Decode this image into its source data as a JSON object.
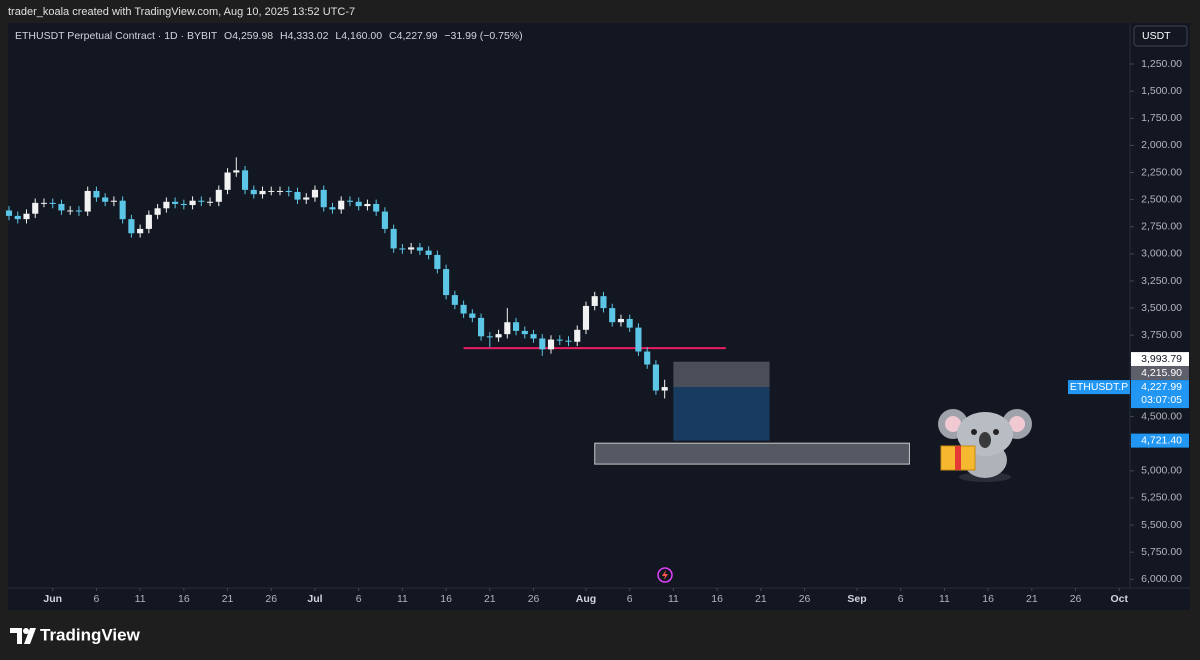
{
  "header": {
    "credit": "trader_koala created with TradingView.com, Aug 10, 2025 13:52 UTC-7"
  },
  "footer": {
    "brand": "TradingView"
  },
  "chart_data": {
    "type": "candlestick",
    "legend": {
      "symbol": "ETHUSDT Perpetual Contract · 1D · BYBIT",
      "open": "O4,259.98",
      "high": "H4,333.02",
      "low": "L4,160.00",
      "close": "C4,227.99",
      "change": "−31.99 (−0.75%)"
    },
    "y_axis_label": "USDT",
    "inverted": true,
    "grid": false,
    "up_color": "#5cc6e6",
    "down_color": "#f2f2f2",
    "x": [
      "2025-05-27",
      "2025-05-28",
      "2025-05-29",
      "2025-05-30",
      "2025-05-31",
      "2025-06-01",
      "2025-06-02",
      "2025-06-03",
      "2025-06-04",
      "2025-06-05",
      "2025-06-06",
      "2025-06-07",
      "2025-06-08",
      "2025-06-09",
      "2025-06-10",
      "2025-06-11",
      "2025-06-12",
      "2025-06-13",
      "2025-06-14",
      "2025-06-15",
      "2025-06-16",
      "2025-06-17",
      "2025-06-18",
      "2025-06-19",
      "2025-06-20",
      "2025-06-21",
      "2025-06-22",
      "2025-06-23",
      "2025-06-24",
      "2025-06-25",
      "2025-06-26",
      "2025-06-27",
      "2025-06-28",
      "2025-06-29",
      "2025-06-30",
      "2025-07-01",
      "2025-07-02",
      "2025-07-03",
      "2025-07-04",
      "2025-07-05",
      "2025-07-06",
      "2025-07-07",
      "2025-07-08",
      "2025-07-09",
      "2025-07-10",
      "2025-07-11",
      "2025-07-12",
      "2025-07-13",
      "2025-07-14",
      "2025-07-15",
      "2025-07-16",
      "2025-07-17",
      "2025-07-18",
      "2025-07-19",
      "2025-07-20",
      "2025-07-21",
      "2025-07-22",
      "2025-07-23",
      "2025-07-24",
      "2025-07-25",
      "2025-07-26",
      "2025-07-27",
      "2025-07-28",
      "2025-07-29",
      "2025-07-30",
      "2025-07-31",
      "2025-08-01",
      "2025-08-02",
      "2025-08-03",
      "2025-08-04",
      "2025-08-05",
      "2025-08-06",
      "2025-08-07",
      "2025-08-08",
      "2025-08-09",
      "2025-08-10"
    ],
    "open": [
      2600,
      2650,
      2680,
      2630,
      2530,
      2530,
      2540,
      2600,
      2600,
      2610,
      2420,
      2480,
      2520,
      2510,
      2680,
      2810,
      2770,
      2640,
      2580,
      2520,
      2540,
      2550,
      2510,
      2520,
      2520,
      2410,
      2250,
      2230,
      2410,
      2450,
      2420,
      2420,
      2420,
      2430,
      2500,
      2480,
      2410,
      2570,
      2590,
      2510,
      2520,
      2560,
      2540,
      2610,
      2770,
      2950,
      2960,
      2940,
      2970,
      3010,
      3140,
      3380,
      3470,
      3550,
      3590,
      3760,
      3770,
      3740,
      3630,
      3710,
      3740,
      3780,
      3880,
      3790,
      3800,
      3810,
      3700,
      3480,
      3390,
      3500,
      3630,
      3600,
      3680,
      3900,
      4020,
      4259.98
    ],
    "high": [
      2690,
      2720,
      2720,
      2670,
      2570,
      2580,
      2640,
      2640,
      2650,
      2650,
      2520,
      2560,
      2560,
      2720,
      2850,
      2850,
      2810,
      2680,
      2620,
      2580,
      2590,
      2590,
      2560,
      2560,
      2560,
      2450,
      2290,
      2450,
      2490,
      2490,
      2460,
      2460,
      2470,
      2540,
      2540,
      2520,
      2610,
      2630,
      2630,
      2560,
      2600,
      2600,
      2650,
      2810,
      2990,
      3000,
      3000,
      3010,
      3050,
      3180,
      3420,
      3510,
      3590,
      3630,
      3800,
      3860,
      3810,
      3780,
      3750,
      3780,
      3820,
      3940,
      3920,
      3840,
      3850,
      3850,
      3740,
      3520,
      3540,
      3670,
      3670,
      3720,
      3940,
      4060,
      4300,
      4333.02
    ],
    "low": [
      2560,
      2610,
      2590,
      2490,
      2490,
      2490,
      2500,
      2560,
      2560,
      2380,
      2380,
      2440,
      2470,
      2470,
      2640,
      2730,
      2600,
      2540,
      2480,
      2480,
      2500,
      2470,
      2470,
      2480,
      2370,
      2210,
      2110,
      2190,
      2370,
      2380,
      2380,
      2380,
      2380,
      2390,
      2440,
      2370,
      2370,
      2530,
      2470,
      2470,
      2480,
      2500,
      2500,
      2570,
      2730,
      2910,
      2900,
      2900,
      2930,
      2970,
      3100,
      3340,
      3430,
      3510,
      3550,
      3720,
      3700,
      3500,
      3590,
      3670,
      3700,
      3740,
      3750,
      3750,
      3760,
      3660,
      3440,
      3350,
      3350,
      3460,
      3560,
      3560,
      3640,
      3860,
      3980,
      4160
    ],
    "close": [
      2650,
      2680,
      2630,
      2530,
      2530,
      2540,
      2600,
      2600,
      2610,
      2420,
      2480,
      2520,
      2510,
      2680,
      2810,
      2770,
      2640,
      2580,
      2520,
      2540,
      2550,
      2510,
      2520,
      2520,
      2410,
      2250,
      2230,
      2410,
      2450,
      2420,
      2420,
      2420,
      2430,
      2500,
      2480,
      2410,
      2570,
      2590,
      2510,
      2520,
      2560,
      2540,
      2610,
      2770,
      2950,
      2960,
      2940,
      2970,
      3010,
      3140,
      3380,
      3470,
      3550,
      3590,
      3760,
      3770,
      3740,
      3630,
      3710,
      3740,
      3780,
      3880,
      3790,
      3800,
      3810,
      3700,
      3480,
      3390,
      3500,
      3630,
      3600,
      3680,
      3900,
      4020,
      4260,
      4227.99
    ],
    "xlim": [
      "2025-05-27",
      "2025-10-02"
    ],
    "xticks": [
      {
        "value": "2025-06-01",
        "label": "Jun"
      },
      {
        "value": "2025-06-06",
        "label": "6"
      },
      {
        "value": "2025-06-11",
        "label": "11"
      },
      {
        "value": "2025-06-16",
        "label": "16"
      },
      {
        "value": "2025-06-21",
        "label": "21"
      },
      {
        "value": "2025-06-26",
        "label": "26"
      },
      {
        "value": "2025-07-01",
        "label": "Jul"
      },
      {
        "value": "2025-07-06",
        "label": "6"
      },
      {
        "value": "2025-07-11",
        "label": "11"
      },
      {
        "value": "2025-07-16",
        "label": "16"
      },
      {
        "value": "2025-07-21",
        "label": "21"
      },
      {
        "value": "2025-07-26",
        "label": "26"
      },
      {
        "value": "2025-08-01",
        "label": "Aug"
      },
      {
        "value": "2025-08-06",
        "label": "6"
      },
      {
        "value": "2025-08-11",
        "label": "11"
      },
      {
        "value": "2025-08-16",
        "label": "16"
      },
      {
        "value": "2025-08-21",
        "label": "21"
      },
      {
        "value": "2025-08-26",
        "label": "26"
      },
      {
        "value": "2025-09-01",
        "label": "Sep"
      },
      {
        "value": "2025-09-06",
        "label": "6"
      },
      {
        "value": "2025-09-11",
        "label": "11"
      },
      {
        "value": "2025-09-16",
        "label": "16"
      },
      {
        "value": "2025-09-21",
        "label": "21"
      },
      {
        "value": "2025-09-26",
        "label": "26"
      },
      {
        "value": "2025-10-01",
        "label": "Oct"
      }
    ],
    "ylim": [
      872,
      6080
    ],
    "yticks": [
      {
        "value": 1250,
        "label": "1,250.00"
      },
      {
        "value": 1500,
        "label": "1,500.00"
      },
      {
        "value": 1750,
        "label": "1,750.00"
      },
      {
        "value": 2000,
        "label": "2,000.00"
      },
      {
        "value": 2250,
        "label": "2,250.00"
      },
      {
        "value": 2500,
        "label": "2,500.00"
      },
      {
        "value": 2750,
        "label": "2,750.00"
      },
      {
        "value": 3000,
        "label": "3,000.00"
      },
      {
        "value": 3250,
        "label": "3,250.00"
      },
      {
        "value": 3500,
        "label": "3,500.00"
      },
      {
        "value": 3750,
        "label": "3,750.00"
      },
      {
        "value": 4000,
        "label": "4,000.00"
      },
      {
        "value": 4250,
        "label": "4,250.00"
      },
      {
        "value": 4500,
        "label": "4,500.00"
      },
      {
        "value": 4750,
        "label": "4,750.00"
      },
      {
        "value": 5000,
        "label": "5,000.00"
      },
      {
        "value": 5250,
        "label": "5,250.00"
      },
      {
        "value": 5500,
        "label": "5,500.00"
      },
      {
        "value": 5750,
        "label": "5,750.00"
      },
      {
        "value": 6000,
        "label": "6,000.00"
      }
    ],
    "price_labels": [
      {
        "value": 3993.79,
        "label": "3,993.79",
        "color": "#ffffff",
        "text_color": "#131722"
      },
      {
        "value": 4215.9,
        "label": "4,215.90",
        "color": "#5d606b",
        "text_color": "#ffffff"
      },
      {
        "value": 4227.99,
        "label": "4,227.99",
        "color": "#2196f3",
        "text_color": "#ffffff",
        "countdown": "03:07:05",
        "tag": "ETHUSDT.P"
      },
      {
        "value": 4721.4,
        "label": "4,721.40",
        "color": "#2196f3",
        "text_color": "#ffffff"
      }
    ],
    "hlines": [
      {
        "value": 3869,
        "start": "2025-07-18",
        "end": "2025-08-17",
        "color": "#e91e63"
      }
    ],
    "boxes": [
      {
        "top": 3993.79,
        "bottom": 4227.99,
        "start": "2025-08-11",
        "end": "2025-08-22",
        "color": "rgba(120,123,134,0.55)"
      },
      {
        "top": 4227.99,
        "bottom": 4721.4,
        "start": "2025-08-11",
        "end": "2025-08-22",
        "color": "rgba(30,90,150,0.55)"
      },
      {
        "top": 4745,
        "bottom": 4938,
        "start": "2025-08-02",
        "end": "2025-09-07",
        "color": "rgba(130,133,144,0.6)",
        "border": "#c8c8c8"
      }
    ]
  }
}
